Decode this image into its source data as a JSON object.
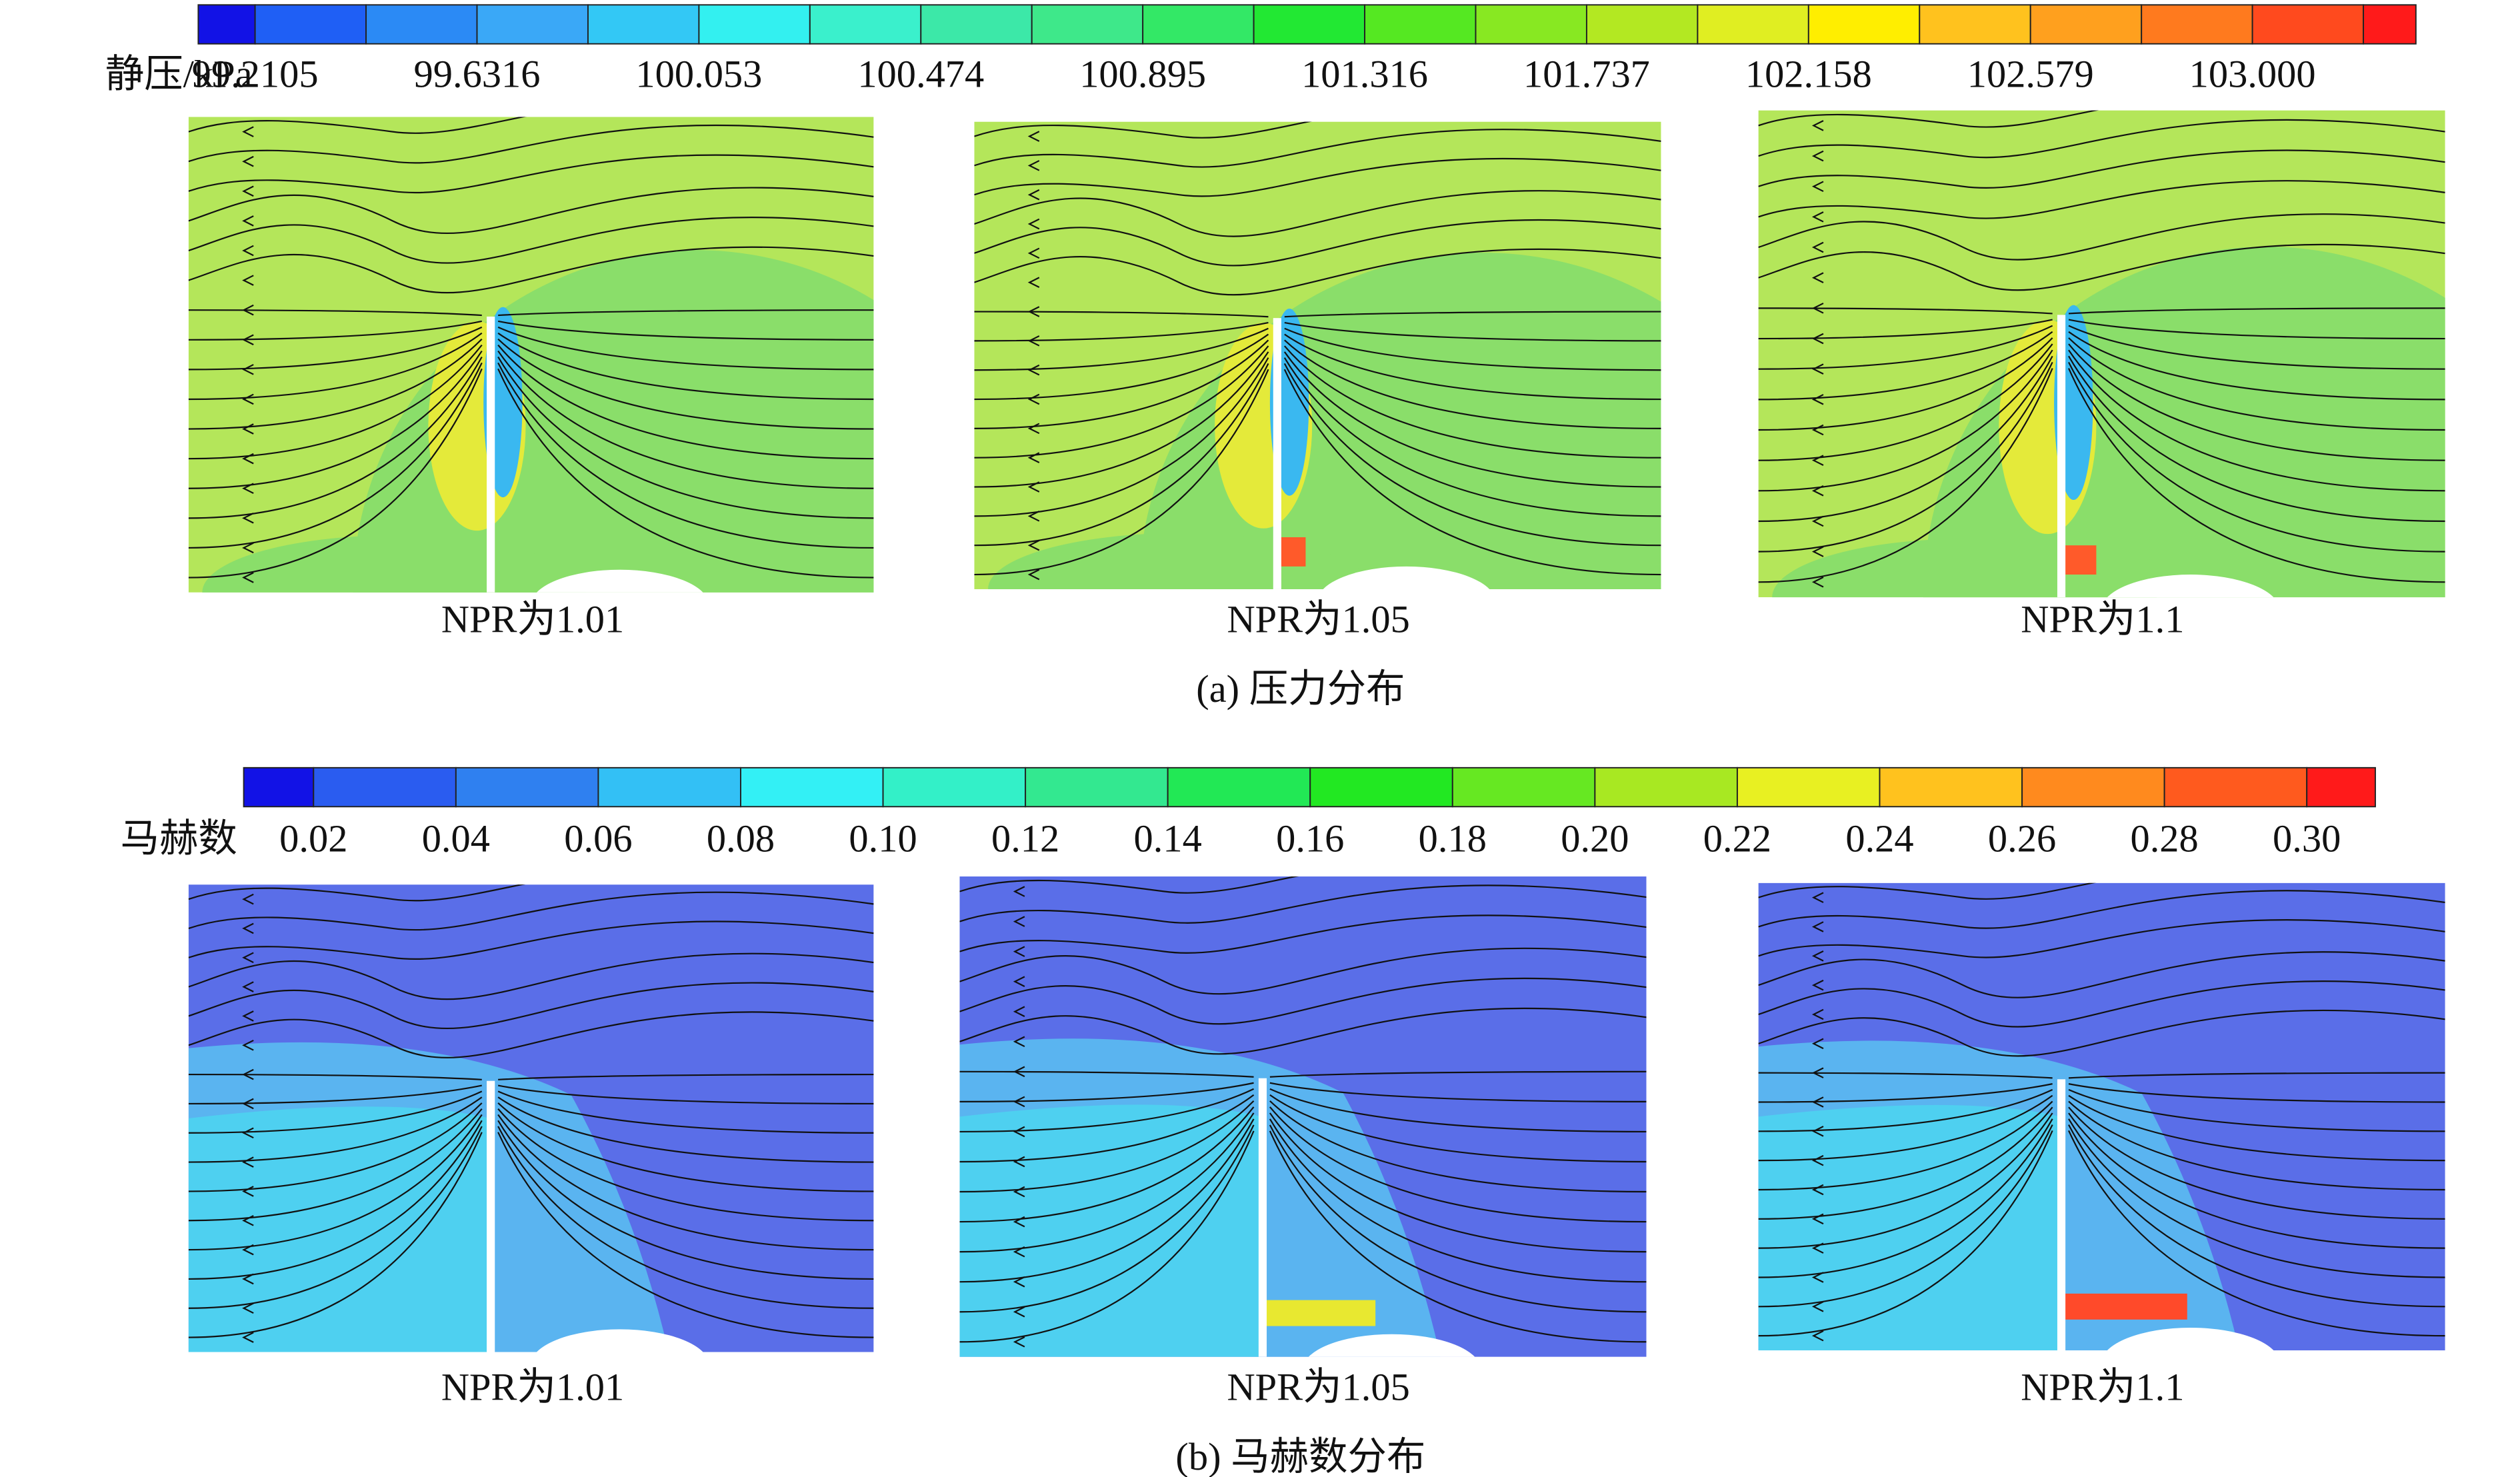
{
  "pressure_legend": {
    "label": "静压/kPa",
    "ticks": [
      "99.2105",
      "99.6316",
      "100.053",
      "100.474",
      "100.895",
      "101.316",
      "101.737",
      "102.158",
      "102.579",
      "103.000"
    ],
    "colors": [
      "#1212e6",
      "#1f5ff5",
      "#2b8af5",
      "#3aa8f7",
      "#33c8f5",
      "#33f0f0",
      "#3af0cc",
      "#3ce8a8",
      "#3ee88a",
      "#33e866",
      "#22e833",
      "#55e822",
      "#88e822",
      "#b3e822",
      "#e0ee22",
      "#ffee00",
      "#ffc21e",
      "#ffa01e",
      "#ff7a1e",
      "#ff4a1e",
      "#ff1a1a"
    ]
  },
  "pressure_panels": [
    {
      "caption": "NPR为1.01"
    },
    {
      "caption": "NPR为1.05"
    },
    {
      "caption": "NPR为1.1"
    }
  ],
  "pressure_caption": "(a) 压力分布",
  "mach_legend": {
    "label": "马赫数",
    "ticks": [
      "0.02",
      "0.04",
      "0.06",
      "0.08",
      "0.10",
      "0.12",
      "0.14",
      "0.16",
      "0.18",
      "0.20",
      "0.22",
      "0.24",
      "0.26",
      "0.28",
      "0.30"
    ],
    "colors": [
      "#1212e6",
      "#2a5cf0",
      "#2f80f0",
      "#33c0f5",
      "#33f0f5",
      "#33f0c8",
      "#33e890",
      "#22e855",
      "#22e822",
      "#66e822",
      "#a8e822",
      "#e8f022",
      "#ffc21e",
      "#ff8a1e",
      "#ff5a1e",
      "#ff1a1a"
    ]
  },
  "mach_panels": [
    {
      "caption": "NPR为1.01"
    },
    {
      "caption": "NPR为1.05"
    },
    {
      "caption": "NPR为1.1"
    }
  ],
  "mach_caption": "(b) 马赫数分布"
}
